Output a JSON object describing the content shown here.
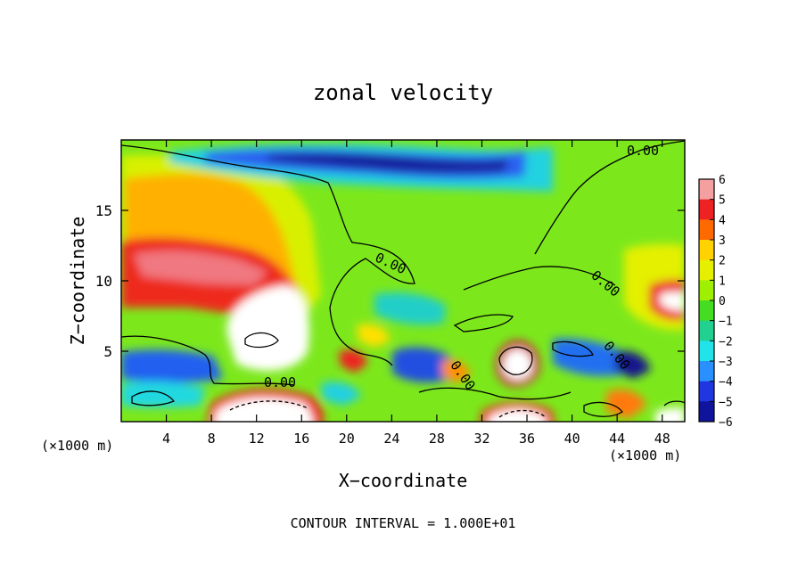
{
  "chart_data": {
    "type": "heatmap",
    "title": "zonal velocity",
    "xlabel": "X−coordinate",
    "ylabel": "Z−coordinate",
    "x_unit_left": "(×1000 m)",
    "x_unit_right": "(×1000 m)",
    "footer": "CONTOUR INTERVAL = 1.000E+01",
    "xlim": [
      0,
      50
    ],
    "ylim": [
      0,
      20
    ],
    "x_ticks": [
      4,
      8,
      12,
      16,
      20,
      24,
      28,
      32,
      36,
      40,
      44,
      48
    ],
    "y_ticks": [
      5,
      10,
      15
    ],
    "colorbar": {
      "ticks": [
        6,
        5,
        4,
        3,
        2,
        1,
        0,
        -1,
        -2,
        -3,
        -4,
        -5,
        -6
      ],
      "range": [
        -6,
        6
      ],
      "colors": [
        "#f4a0a0",
        "#ee2222",
        "#ff6a00",
        "#ffd200",
        "#e4f000",
        "#9ff000",
        "#44dd22",
        "#22d090",
        "#22e4e8",
        "#2a90ff",
        "#1f36e0",
        "#10139c",
        "#8a10a6"
      ]
    },
    "contour_labels": [
      "0.00",
      "0.00",
      "0.00",
      "0.00",
      "0.00",
      "0.00"
    ],
    "grid": false,
    "legend": "colorbar-right"
  }
}
